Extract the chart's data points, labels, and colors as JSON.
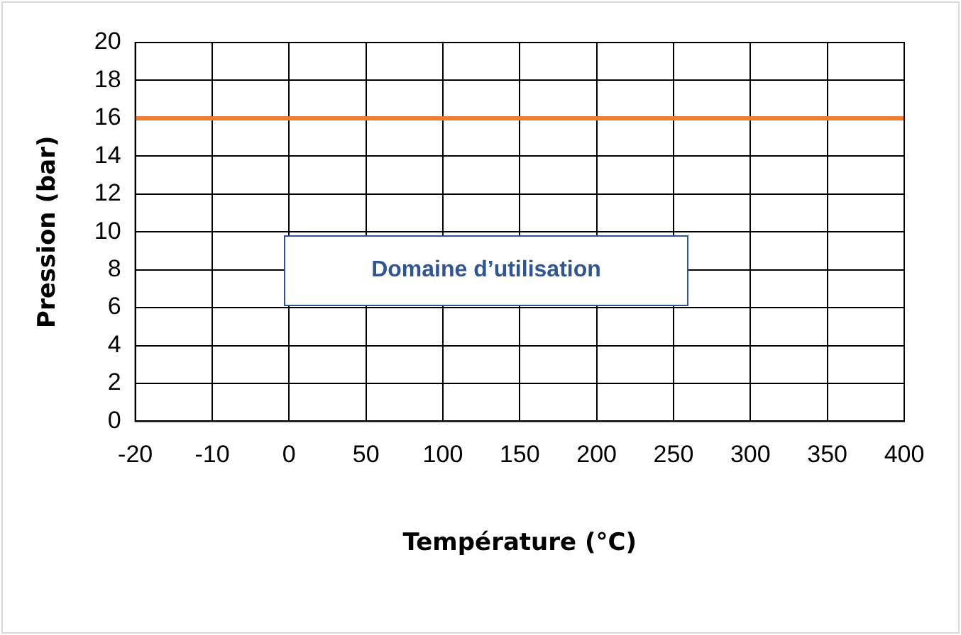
{
  "chart_data": {
    "type": "line",
    "xlabel": "Température (°C)",
    "ylabel": "Pression (bar)",
    "categories": [
      "-20",
      "-10",
      "0",
      "50",
      "100",
      "150",
      "200",
      "250",
      "300",
      "350",
      "400"
    ],
    "series": [
      {
        "color": "#ed7d31",
        "values": [
          16,
          16,
          16,
          16,
          16,
          16,
          16,
          16,
          16,
          16,
          16
        ]
      }
    ],
    "ylim": [
      0,
      20
    ],
    "yticks": [
      0,
      2,
      4,
      6,
      8,
      10,
      12,
      14,
      16,
      18,
      20
    ],
    "grid": true,
    "legend": false,
    "marker": "none",
    "annotations": [
      "Domaine d’utilisation"
    ]
  }
}
